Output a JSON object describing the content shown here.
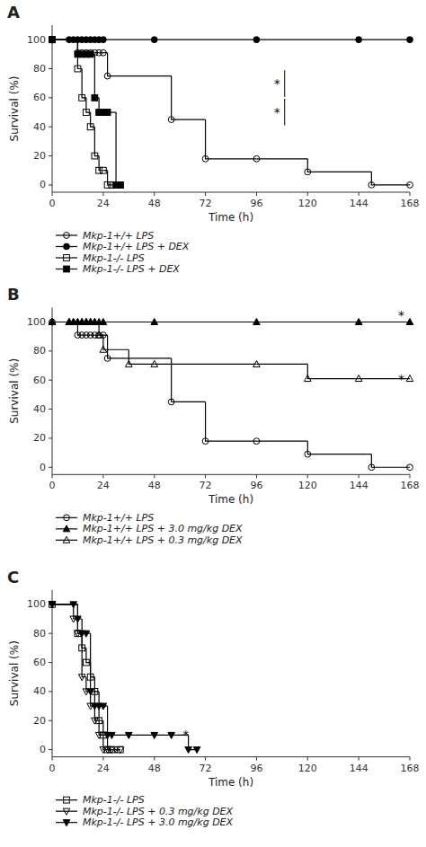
{
  "chart_data": [
    {
      "type": "step",
      "title": "A",
      "x_label": "Time (h)",
      "y_label": "Survival (%)",
      "xlim": [
        0,
        168
      ],
      "ylim": [
        -5,
        110
      ],
      "xticks": [
        0,
        24,
        48,
        72,
        96,
        120,
        144,
        168
      ],
      "yticks": [
        0,
        20,
        40,
        60,
        80,
        100
      ],
      "grid": false,
      "legend": "bottom",
      "series": [
        {
          "name": "Mkp-1+/+ LPS",
          "color": "black",
          "marker": "circle-open",
          "x": [
            0,
            12,
            14,
            16,
            18,
            20,
            22,
            24,
            26,
            56,
            72,
            96,
            120,
            150,
            168
          ],
          "values": [
            100,
            91,
            91,
            91,
            91,
            91,
            91,
            91,
            75,
            45,
            18,
            18,
            9,
            0,
            0
          ]
        },
        {
          "name": "Mkp-1+/+ LPS + DEX",
          "color": "black",
          "marker": "circle-filled",
          "x": [
            0,
            8,
            10,
            12,
            14,
            16,
            18,
            20,
            22,
            24,
            48,
            96,
            144,
            168
          ],
          "values": [
            100,
            100,
            100,
            100,
            100,
            100,
            100,
            100,
            100,
            100,
            100,
            100,
            100,
            100
          ]
        },
        {
          "name": "Mkp-1-/- LPS",
          "color": "black",
          "marker": "square-open",
          "x": [
            0,
            12,
            14,
            16,
            18,
            20,
            22,
            24,
            26,
            28,
            32
          ],
          "values": [
            100,
            80,
            60,
            50,
            40,
            20,
            10,
            10,
            0,
            0,
            0
          ]
        },
        {
          "name": "Mkp-1-/- LPS + DEX",
          "color": "black",
          "marker": "square-filled",
          "x": [
            0,
            12,
            14,
            16,
            18,
            20,
            22,
            24,
            26,
            30,
            32
          ],
          "values": [
            100,
            90,
            90,
            90,
            90,
            60,
            50,
            50,
            50,
            0,
            0
          ]
        }
      ],
      "annotations": [
        {
          "text": "*"
        },
        {
          "text": "*"
        }
      ]
    },
    {
      "type": "step",
      "title": "B",
      "x_label": "Time (h)",
      "y_label": "Survival (%)",
      "xlim": [
        0,
        168
      ],
      "ylim": [
        -5,
        110
      ],
      "xticks": [
        0,
        24,
        48,
        72,
        96,
        120,
        144,
        168
      ],
      "yticks": [
        0,
        20,
        40,
        60,
        80,
        100
      ],
      "grid": false,
      "legend": "bottom",
      "series": [
        {
          "name": "Mkp-1+/+ LPS",
          "color": "black",
          "marker": "circle-open",
          "x": [
            0,
            12,
            14,
            16,
            18,
            20,
            22,
            24,
            26,
            56,
            72,
            96,
            120,
            150,
            168
          ],
          "values": [
            100,
            91,
            91,
            91,
            91,
            91,
            91,
            91,
            75,
            45,
            18,
            18,
            9,
            0,
            0
          ]
        },
        {
          "name": "Mkp-1+/+ LPS + 3.0 mg/kg DEX",
          "color": "black",
          "marker": "triangle-up-filled",
          "x": [
            0,
            8,
            10,
            12,
            14,
            16,
            18,
            20,
            22,
            24,
            48,
            96,
            144,
            168
          ],
          "values": [
            100,
            100,
            100,
            100,
            100,
            100,
            100,
            100,
            100,
            100,
            100,
            100,
            100,
            100
          ]
        },
        {
          "name": "Mkp-1+/+ LPS + 0.3 mg/kg DEX",
          "color": "black",
          "marker": "triangle-up-open",
          "x": [
            0,
            8,
            10,
            12,
            14,
            16,
            18,
            20,
            22,
            24,
            36,
            48,
            96,
            120,
            144,
            168
          ],
          "values": [
            100,
            100,
            100,
            100,
            100,
            100,
            100,
            100,
            91,
            81,
            71,
            71,
            71,
            61,
            61,
            61
          ]
        }
      ],
      "annotations": [
        {
          "text": "*"
        },
        {
          "text": "*"
        }
      ]
    },
    {
      "type": "step",
      "title": "C",
      "x_label": "Time (h)",
      "y_label": "Survival (%)",
      "xlim": [
        0,
        168
      ],
      "ylim": [
        -5,
        110
      ],
      "xticks": [
        0,
        24,
        48,
        72,
        96,
        120,
        144,
        168
      ],
      "yticks": [
        0,
        20,
        40,
        60,
        80,
        100
      ],
      "grid": false,
      "legend": "bottom",
      "series": [
        {
          "name": "Mkp-1-/- LPS",
          "color": "black",
          "marker": "square-open",
          "x": [
            0,
            12,
            14,
            16,
            18,
            20,
            22,
            24,
            26,
            28,
            32
          ],
          "values": [
            100,
            80,
            70,
            60,
            50,
            40,
            20,
            10,
            0,
            0,
            0
          ]
        },
        {
          "name": "Mkp-1-/- LPS + 0.3 mg/kg DEX",
          "color": "black",
          "marker": "triangle-down-open",
          "x": [
            0,
            10,
            12,
            14,
            16,
            18,
            20,
            22,
            24,
            26,
            28,
            30,
            32
          ],
          "values": [
            100,
            90,
            80,
            50,
            40,
            30,
            20,
            10,
            0,
            0,
            0,
            0,
            0
          ]
        },
        {
          "name": "Mkp-1-/- LPS + 3.0 mg/kg DEX",
          "color": "black",
          "marker": "triangle-down-filled",
          "x": [
            0,
            10,
            12,
            14,
            16,
            18,
            20,
            22,
            24,
            26,
            28,
            36,
            48,
            56,
            64,
            68
          ],
          "values": [
            100,
            100,
            90,
            80,
            80,
            40,
            30,
            30,
            30,
            10,
            10,
            10,
            10,
            10,
            0,
            0
          ]
        }
      ],
      "annotations": [
        {
          "text": "*"
        }
      ]
    }
  ]
}
